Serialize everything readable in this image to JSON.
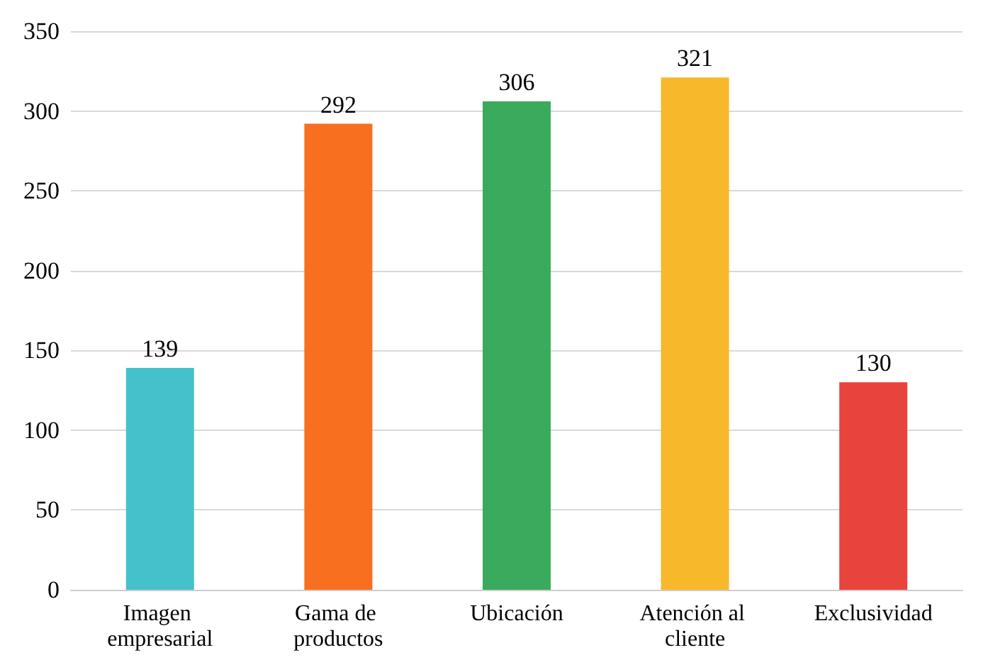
{
  "chart_data": {
    "type": "bar",
    "categories": [
      "Imagen empresarial",
      "Gama de productos",
      "Ubicación",
      "Atención al cliente",
      "Exclusividad"
    ],
    "values": [
      139,
      292,
      306,
      321,
      130
    ],
    "colors": [
      "#45c1cc",
      "#f76f1f",
      "#3aaa5c",
      "#f8b82b",
      "#e8443c"
    ],
    "ylim": [
      0,
      350
    ],
    "yticks": [
      0,
      50,
      100,
      150,
      200,
      250,
      300,
      350
    ],
    "grid": "y",
    "data_labels": true
  }
}
